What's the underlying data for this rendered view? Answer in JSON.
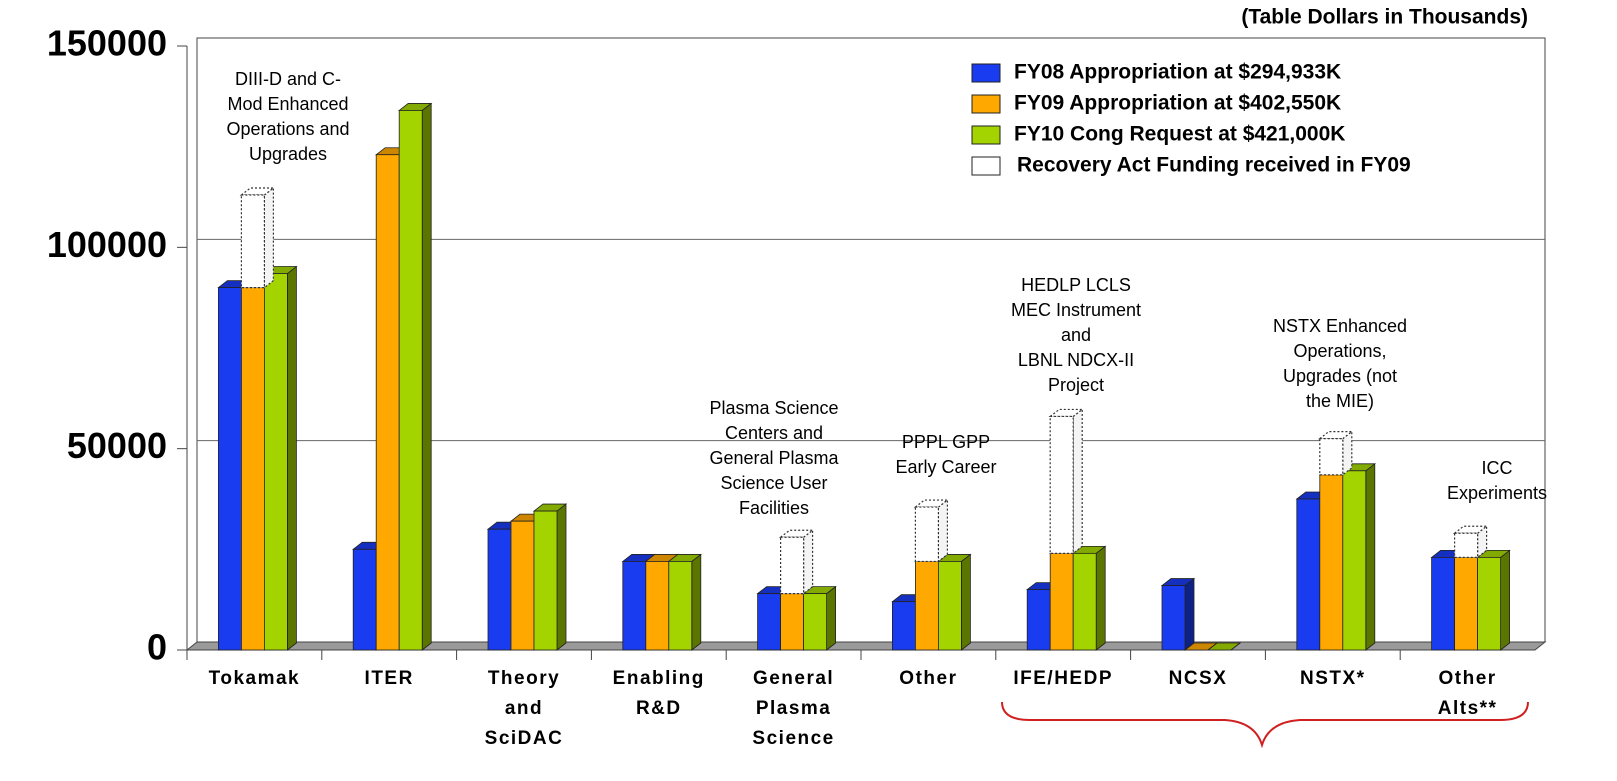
{
  "chart_data": {
    "type": "bar3d",
    "subtitle": "(Table Dollars in Thousands)",
    "categories": [
      "Tokamak",
      "ITER",
      "Theory and SciDAC",
      "Enabling R&D",
      "General Plasma Science",
      "Other",
      "IFE/HEDP",
      "NCSX",
      "NSTX*",
      "Other Alts**"
    ],
    "series": [
      {
        "name": "FY08 Appropriation at $294,933K",
        "color": "#1a3cf0",
        "values": [
          90000,
          25000,
          30000,
          22000,
          14000,
          12000,
          15000,
          16000,
          37500,
          23000
        ]
      },
      {
        "name": "FY09 Appropriation at $402,550K",
        "color": "#ffa800",
        "values": [
          90000,
          123000,
          32000,
          22000,
          14000,
          22000,
          24000,
          0,
          43500,
          23000
        ]
      },
      {
        "name": "FY10 Cong Request at $421,000K",
        "color": "#a4d400",
        "values": [
          93500,
          134000,
          34500,
          22000,
          14000,
          22000,
          24000,
          0,
          44500,
          23000
        ]
      },
      {
        "name": "Recovery Act Funding received in FY09",
        "color": "#ffffff",
        "values": [
          23000,
          null,
          null,
          null,
          14000,
          13500,
          34000,
          null,
          9000,
          6000
        ]
      }
    ],
    "annotations": [
      [
        "DIII-D and C-",
        "Mod Enhanced",
        "Operations and",
        "Upgrades"
      ],
      [
        "Plasma Science",
        "Centers and",
        "General Plasma",
        "Science User",
        "Facilities"
      ],
      [
        "PPPL GPP",
        "Early Career"
      ],
      [
        "HEDLP LCLS",
        "MEC Instrument",
        "and",
        "LBNL NDCX-II",
        "Project"
      ],
      [
        "NSTX Enhanced",
        "Operations,",
        "Upgrades (not",
        "the MIE)"
      ],
      [
        "ICC",
        "Experiments"
      ]
    ],
    "ylim": [
      0,
      150000
    ],
    "yticks": [
      0,
      50000,
      100000,
      150000
    ],
    "grid": true,
    "legend": "upper right"
  }
}
